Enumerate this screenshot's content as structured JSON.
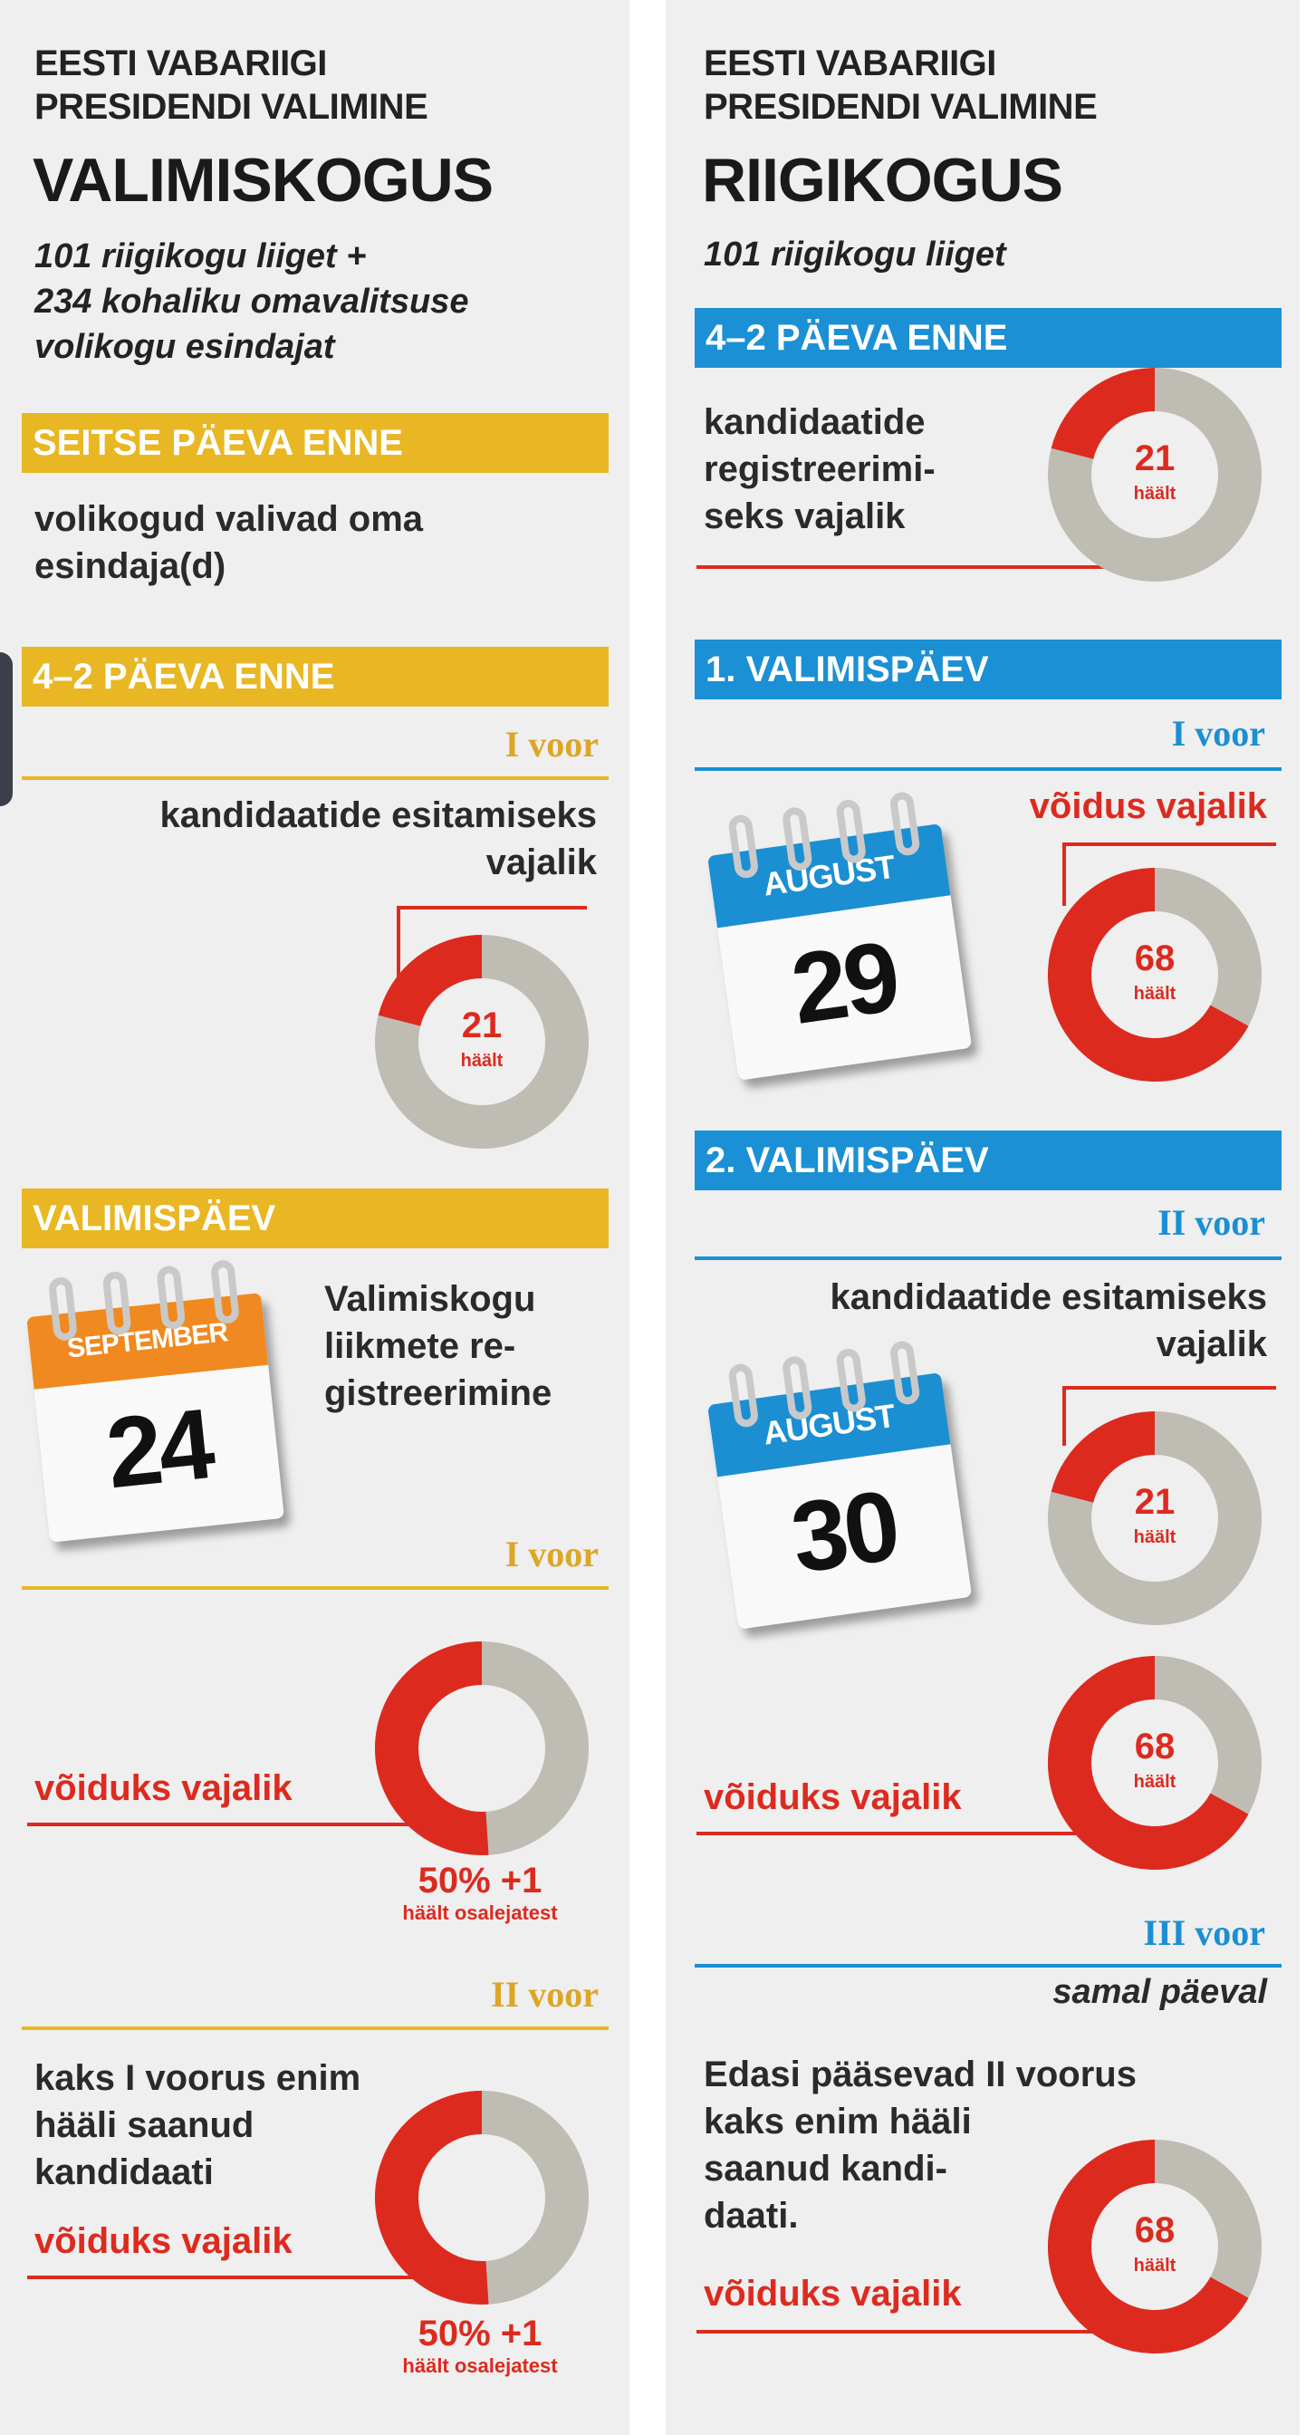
{
  "left": {
    "supertitle": [
      "EESTI VABARIIGI",
      "PRESIDENDI VALIMINE"
    ],
    "title": "VALIMISKOGUS",
    "subtitle": [
      "101 riigikogu liiget +",
      "234 kohaliku omavalitsuse",
      "volikogu esindajat"
    ],
    "stage1": {
      "header": "SEITSE PÄEVA ENNE",
      "text": [
        "volikogud valivad oma",
        "esindaja(d)"
      ]
    },
    "stage2": {
      "header": "4–2 PÄEVA ENNE",
      "round": "I voor",
      "text": [
        "kandidaatide esitamiseks",
        "vajalik"
      ],
      "votes": "21",
      "votes_label": "häält",
      "share": 0.21
    },
    "stage3": {
      "header": "VALIMISPÄEV",
      "calendar": {
        "month": "SEPTEMBER",
        "day": "24",
        "color": "#f0891f"
      },
      "text": [
        "Valimiskogu",
        "liikmete re-",
        "gistreerimine"
      ],
      "round1": {
        "label": "I voor",
        "win_text": "võiduks vajalik",
        "pct": "50% +1",
        "pct_sub": "häält osalejatest",
        "share": 0.51
      },
      "round2": {
        "label": "II voor",
        "text": [
          "kaks I voorus enim",
          "hääli saanud",
          "kandidaati"
        ],
        "win_text": "võiduks vajalik",
        "pct": "50% +1",
        "pct_sub": "häält osalejatest",
        "share": 0.51
      }
    }
  },
  "right": {
    "supertitle": [
      "EESTI VABARIIGI",
      "PRESIDENDI VALIMINE"
    ],
    "title": "RIIGIKOGUS",
    "subtitle": "101 riigikogu liiget",
    "stage1": {
      "header": "4–2 PÄEVA ENNE",
      "text": [
        "kandidaatide",
        "registreerimi-",
        "seks vajalik"
      ],
      "votes": "21",
      "votes_label": "häält",
      "share": 0.21
    },
    "stage2": {
      "header": "1. VALIMISPÄEV",
      "round": "I voor",
      "win_text": "võidus vajalik",
      "calendar": {
        "month": "AUGUST",
        "day": "29",
        "color": "#1b8fd2"
      },
      "votes": "68",
      "votes_label": "häält",
      "share": 0.67
    },
    "stage3": {
      "header": "2. VALIMISPÄEV",
      "calendar": {
        "month": "AUGUST",
        "day": "30",
        "color": "#1b8fd2"
      },
      "round2": {
        "label": "II voor",
        "text": [
          "kandidaatide esitamiseks",
          "vajalik"
        ],
        "votes": "21",
        "votes_label": "häält",
        "share": 0.21
      },
      "round2_win": {
        "win_text": "võiduks vajalik",
        "votes": "68",
        "votes_label": "häält",
        "share": 0.67
      },
      "round3": {
        "label": "III voor",
        "note": "samal päeval",
        "text": [
          "Edasi pääsevad II voorus",
          "kaks enim hääli",
          "saanud kandi-",
          "daati."
        ],
        "win_text": "võiduks vajalik",
        "votes": "68",
        "votes_label": "häält",
        "share": 0.67
      }
    }
  },
  "colors": {
    "red": "#dd2a1f",
    "grey": "#bfbcb4",
    "yellow": "#e8b723",
    "blue": "#1b90d4"
  }
}
